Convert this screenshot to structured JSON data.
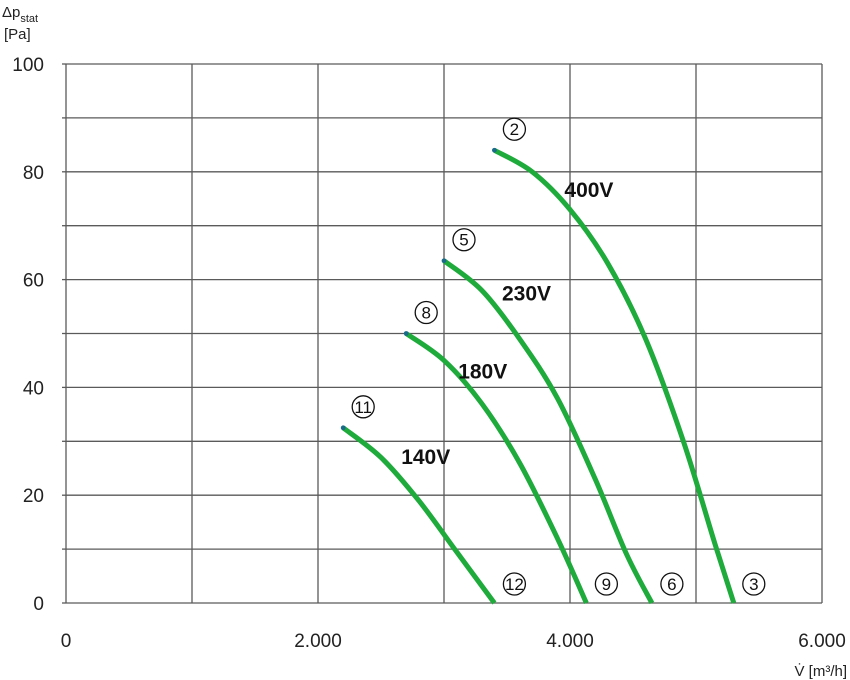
{
  "chart_data": {
    "type": "line",
    "title": "",
    "xlabel": "V̇ [m³/h]",
    "ylabel_main": "Δp",
    "ylabel_sub": "stat",
    "ylabel_unit": "[Pa]",
    "xlim": [
      0,
      6000
    ],
    "ylim": [
      0,
      100
    ],
    "x_ticks": [
      0,
      2000,
      4000,
      6000
    ],
    "x_tick_labels": [
      "0",
      "2.000",
      "4.000",
      "6.000"
    ],
    "y_ticks": [
      0,
      20,
      40,
      60,
      80,
      100
    ],
    "y_tick_labels": [
      "0",
      "20",
      "40",
      "60",
      "80",
      "100"
    ],
    "x_grid": [
      0,
      1000,
      2000,
      3000,
      4000,
      5000,
      6000
    ],
    "y_grid": [
      0,
      10,
      20,
      30,
      40,
      50,
      60,
      70,
      80,
      90,
      100
    ],
    "grid": true,
    "line_color": "#1faa3c",
    "series": [
      {
        "name": "400V",
        "start_marker": "2",
        "end_marker": "3",
        "x": [
          3400,
          3700,
          4000,
          4300,
          4600,
          4900,
          5150,
          5300
        ],
        "y": [
          84,
          80,
          73,
          63,
          49,
          30,
          11,
          0
        ]
      },
      {
        "name": "230V",
        "start_marker": "5",
        "end_marker": "6",
        "x": [
          3000,
          3300,
          3600,
          3900,
          4200,
          4450,
          4650
        ],
        "y": [
          63.5,
          58,
          49,
          38,
          23,
          9,
          0
        ]
      },
      {
        "name": "180V",
        "start_marker": "8",
        "end_marker": "9",
        "x": [
          2700,
          3000,
          3300,
          3600,
          3900,
          4130
        ],
        "y": [
          50,
          45,
          37,
          26,
          12,
          0
        ]
      },
      {
        "name": "140V",
        "start_marker": "11",
        "end_marker": "12",
        "x": [
          2200,
          2500,
          2800,
          3100,
          3400
        ],
        "y": [
          32.5,
          27,
          19,
          9.5,
          0
        ]
      }
    ]
  }
}
